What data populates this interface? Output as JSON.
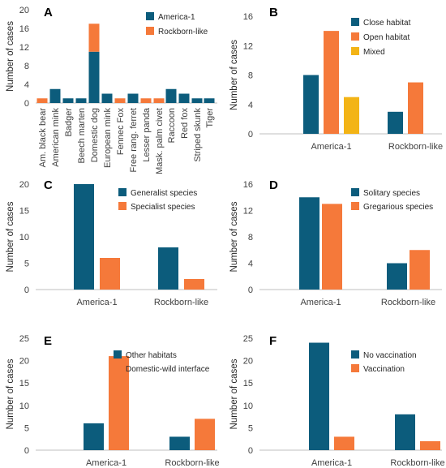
{
  "colors": {
    "blue": "#0c5c7c",
    "orange": "#f5793a",
    "yellow": "#f3b416"
  },
  "chart_data": [
    {
      "panel": "A",
      "type": "bar",
      "stacked": true,
      "ylabel": "Number of cases",
      "ylim": [
        0,
        20
      ],
      "yticks": [
        0,
        4,
        8,
        12,
        16,
        20
      ],
      "legend": "top-right",
      "categories": [
        "Am. black bear",
        "American mink",
        "Badger",
        "Beech marten",
        "Domestic dog",
        "European mink",
        "Fennec Fox",
        "Free rang. ferret",
        "Lesser panda",
        "Mask. palm civet",
        "Raccoon",
        "Red fox",
        "Striped skunk",
        "Tiger"
      ],
      "series": [
        {
          "name": "America-1",
          "color": "#0c5c7c",
          "values": [
            0,
            3,
            1,
            1,
            11,
            2,
            0,
            2,
            0,
            0,
            3,
            2,
            1,
            1
          ]
        },
        {
          "name": "Rockborn-like",
          "color": "#f5793a",
          "values": [
            1,
            0,
            0,
            0,
            6,
            0,
            1,
            0,
            1,
            1,
            0,
            0,
            0,
            0
          ]
        }
      ]
    },
    {
      "panel": "B",
      "type": "bar",
      "ylabel": "Number of cases",
      "ylim": [
        0,
        16
      ],
      "yticks": [
        0,
        4,
        8,
        12,
        16
      ],
      "legend": "top-left",
      "categories": [
        "America-1",
        "Rockborn-like"
      ],
      "series": [
        {
          "name": "Close habitat",
          "color": "#0c5c7c",
          "values": [
            8,
            3
          ]
        },
        {
          "name": "Open habitat",
          "color": "#f5793a",
          "values": [
            14,
            7
          ]
        },
        {
          "name": "Mixed",
          "color": "#f3b416",
          "values": [
            5,
            0
          ]
        }
      ]
    },
    {
      "panel": "C",
      "type": "bar",
      "ylabel": "Number of cases",
      "ylim": [
        0,
        20
      ],
      "yticks": [
        0,
        5,
        10,
        15,
        20
      ],
      "legend": "top-center",
      "categories": [
        "America-1",
        "Rockborn-like"
      ],
      "series": [
        {
          "name": "Generalist species",
          "color": "#0c5c7c",
          "values": [
            20,
            8
          ]
        },
        {
          "name": "Specialist species",
          "color": "#f5793a",
          "values": [
            6,
            2
          ]
        }
      ]
    },
    {
      "panel": "D",
      "type": "bar",
      "ylabel": "Number of cases",
      "ylim": [
        0,
        16
      ],
      "yticks": [
        0,
        4,
        8,
        12,
        16
      ],
      "legend": "top-right",
      "categories": [
        "America-1",
        "Rockborn-like"
      ],
      "series": [
        {
          "name": "Solitary species",
          "color": "#0c5c7c",
          "values": [
            14,
            4
          ]
        },
        {
          "name": "Gregarious species",
          "color": "#f5793a",
          "values": [
            13,
            6
          ]
        }
      ]
    },
    {
      "panel": "E",
      "type": "bar",
      "ylabel": "Number of cases",
      "ylim": [
        0,
        25
      ],
      "yticks": [
        0,
        5,
        10,
        15,
        20,
        25
      ],
      "legend": "top-center",
      "categories": [
        "America-1",
        "Rockborn-like"
      ],
      "series": [
        {
          "name": "Other habitats",
          "color": "#0c5c7c",
          "values": [
            6,
            3
          ]
        },
        {
          "name": "Domestic-wild interface",
          "color": "#f5793a",
          "values": [
            21,
            7
          ]
        }
      ]
    },
    {
      "panel": "F",
      "type": "bar",
      "ylabel": "Number of cases",
      "ylim": [
        0,
        25
      ],
      "yticks": [
        0,
        5,
        10,
        15,
        20,
        25
      ],
      "legend": "top-center",
      "categories": [
        "America-1",
        "Rockborn-like"
      ],
      "series": [
        {
          "name": "No vaccination",
          "color": "#0c5c7c",
          "values": [
            24,
            8
          ]
        },
        {
          "name": "Vaccination",
          "color": "#f5793a",
          "values": [
            3,
            2
          ]
        }
      ]
    }
  ]
}
